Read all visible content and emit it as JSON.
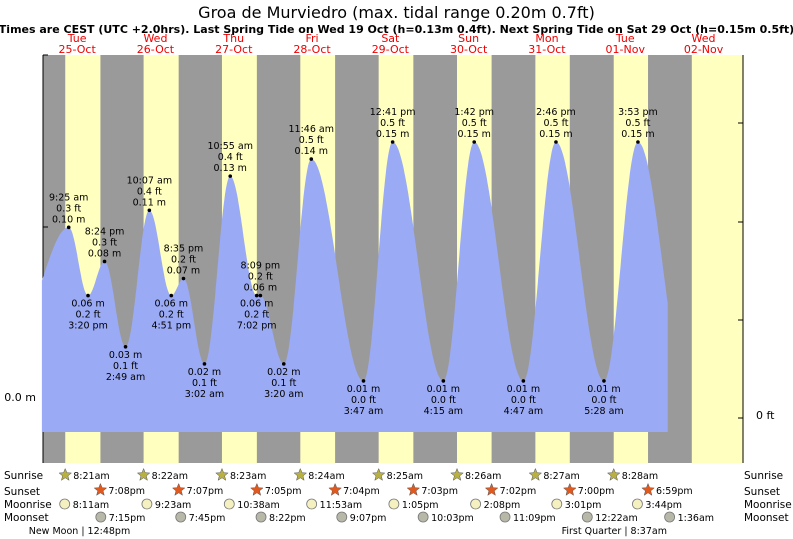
{
  "chart_data": {
    "type": "area",
    "title": "Groa de Murviedro (max. tidal range 0.20m 0.7ft)",
    "subtitle": "Times are CEST (UTC +2.0hrs). Last Spring Tide on Wed 19 Oct (h=0.13m 0.4ft). Next Spring Tide on Sat 29 Oct (h=0.15m 0.5ft)",
    "x_unit": "days since 00:00 Tue 25-Oct",
    "y_unit": "m",
    "ylim": [
      -0.025,
      0.21
    ],
    "left_axis_label": "0.0 m",
    "right_axis_label": "0 ft",
    "colors": {
      "night": "#9a9a9a",
      "day": "#ffffc0",
      "tide": "#9aaaf4",
      "sunset_star": "#e05a20",
      "sunrise_star": "#b8b040"
    },
    "days": [
      {
        "dow": "Tue",
        "date": "25-Oct"
      },
      {
        "dow": "Wed",
        "date": "26-Oct"
      },
      {
        "dow": "Thu",
        "date": "27-Oct"
      },
      {
        "dow": "Fri",
        "date": "28-Oct"
      },
      {
        "dow": "Sat",
        "date": "29-Oct"
      },
      {
        "dow": "Sun",
        "date": "30-Oct"
      },
      {
        "dow": "Mon",
        "date": "31-Oct"
      },
      {
        "dow": "Tue",
        "date": "01-Nov"
      },
      {
        "dow": "Wed",
        "date": "02-Nov"
      }
    ],
    "tides": [
      {
        "t": 0.392,
        "h": 0.1,
        "type": "high",
        "time": "9:25 am",
        "ft": "0.3 ft",
        "m": "0.10 m"
      },
      {
        "t": 0.639,
        "h": 0.06,
        "type": "low",
        "time": "3:20 pm",
        "ft": "0.2 ft",
        "m": "0.06 m"
      },
      {
        "t": 0.85,
        "h": 0.08,
        "type": "high",
        "time": "8:24 pm",
        "ft": "0.3 ft",
        "m": "0.08 m"
      },
      {
        "t": 1.118,
        "h": 0.03,
        "type": "low",
        "time": "2:49 am",
        "ft": "0.1 ft",
        "m": "0.03 m"
      },
      {
        "t": 1.422,
        "h": 0.11,
        "type": "high",
        "time": "10:07 am",
        "ft": "0.4 ft",
        "m": "0.11 m"
      },
      {
        "t": 1.702,
        "h": 0.06,
        "type": "low",
        "time": "4:51 pm",
        "ft": "0.2 ft",
        "m": "0.06 m"
      },
      {
        "t": 1.858,
        "h": 0.07,
        "type": "high",
        "time": "8:35 pm",
        "ft": "0.2 ft",
        "m": "0.07 m"
      },
      {
        "t": 2.126,
        "h": 0.02,
        "type": "low",
        "time": "3:02 am",
        "ft": "0.1 ft",
        "m": "0.02 m"
      },
      {
        "t": 2.455,
        "h": 0.13,
        "type": "high",
        "time": "10:55 am",
        "ft": "0.4 ft",
        "m": "0.13 m"
      },
      {
        "t": 2.793,
        "h": 0.06,
        "type": "low",
        "time": "7:02 pm",
        "ft": "0.2 ft",
        "m": "0.06 m"
      },
      {
        "t": 2.84,
        "h": 0.06,
        "type": "high",
        "time": "8:09 pm",
        "ft": "0.2 ft",
        "m": "0.06 m"
      },
      {
        "t": 3.139,
        "h": 0.02,
        "type": "low",
        "time": "3:20 am",
        "ft": "0.1 ft",
        "m": "0.02 m"
      },
      {
        "t": 3.49,
        "h": 0.14,
        "type": "high",
        "time": "11:46 am",
        "ft": "0.5 ft",
        "m": "0.14 m"
      },
      {
        "t": 4.157,
        "h": 0.01,
        "type": "low",
        "time": "3:47 am",
        "ft": "0.0 ft",
        "m": "0.01 m"
      },
      {
        "t": 4.529,
        "h": 0.15,
        "type": "high",
        "time": "12:41 pm",
        "ft": "0.5 ft",
        "m": "0.15 m"
      },
      {
        "t": 5.177,
        "h": 0.01,
        "type": "low",
        "time": "4:15 am",
        "ft": "0.0 ft",
        "m": "0.01 m"
      },
      {
        "t": 5.571,
        "h": 0.15,
        "type": "high",
        "time": "1:42 pm",
        "ft": "0.5 ft",
        "m": "0.15 m"
      },
      {
        "t": 6.199,
        "h": 0.01,
        "type": "low",
        "time": "4:47 am",
        "ft": "0.0 ft",
        "m": "0.01 m"
      },
      {
        "t": 6.615,
        "h": 0.15,
        "type": "high",
        "time": "2:46 pm",
        "ft": "0.5 ft",
        "m": "0.15 m"
      },
      {
        "t": 7.228,
        "h": 0.01,
        "type": "low",
        "time": "5:28 am",
        "ft": "0.0 ft",
        "m": "0.01 m"
      },
      {
        "t": 7.662,
        "h": 0.15,
        "type": "high",
        "time": "3:53 pm",
        "ft": "0.5 ft",
        "m": "0.15 m"
      }
    ],
    "astro": {
      "labels": {
        "sunrise": "Sunrise",
        "sunset": "Sunset",
        "moonrise": "Moonrise",
        "moonset": "Moonset"
      },
      "sunrise": [
        "8:21am",
        "8:22am",
        "8:23am",
        "8:24am",
        "8:25am",
        "8:26am",
        "8:27am",
        "8:28am"
      ],
      "sunset": [
        "7:08pm",
        "7:07pm",
        "7:05pm",
        "7:04pm",
        "7:03pm",
        "7:02pm",
        "7:00pm",
        "6:59pm"
      ],
      "moonrise": [
        "8:11am",
        "9:23am",
        "10:38am",
        "11:53am",
        "1:05pm",
        "2:08pm",
        "3:01pm",
        "3:44pm"
      ],
      "moonset": [
        "7:15pm",
        "7:45pm",
        "8:22pm",
        "9:07pm",
        "10:03pm",
        "11:09pm",
        "12:22am",
        "1:36am"
      ],
      "moonset_day_offset": [
        0,
        0,
        0,
        0,
        0,
        0,
        1,
        1
      ],
      "phases": [
        {
          "label": "New Moon",
          "time": "12:48pm",
          "t": 0.53
        },
        {
          "label": "First Quarter",
          "time": "8:37am",
          "t": 7.36
        }
      ]
    }
  }
}
